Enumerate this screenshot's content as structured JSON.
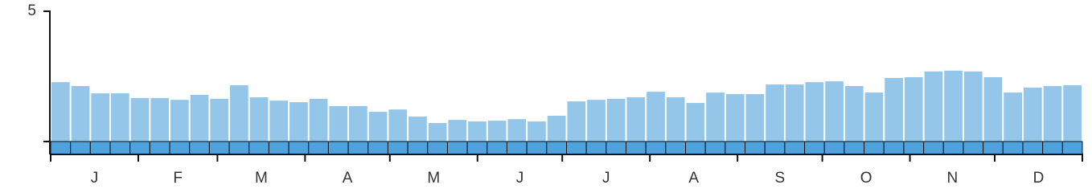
{
  "chart_data": {
    "type": "bar",
    "months": [
      "J",
      "F",
      "M",
      "A",
      "M",
      "J",
      "J",
      "A",
      "S",
      "O",
      "N",
      "D"
    ],
    "values": [
      2.28,
      2.13,
      1.85,
      1.85,
      1.67,
      1.67,
      1.6,
      1.79,
      1.64,
      2.16,
      1.7,
      1.57,
      1.51,
      1.64,
      1.36,
      1.36,
      1.14,
      1.23,
      0.96,
      0.71,
      0.83,
      0.77,
      0.8,
      0.86,
      0.77,
      0.99,
      1.54,
      1.6,
      1.64,
      1.7,
      1.91,
      1.7,
      1.48,
      1.88,
      1.82,
      1.82,
      2.19,
      2.19,
      2.28,
      2.31,
      2.13,
      1.88,
      2.44,
      2.47,
      2.69,
      2.72,
      2.69,
      2.47,
      1.88,
      2.07,
      2.13,
      2.16
    ],
    "color": "#93c6e8",
    "ylim": [
      0,
      5
    ],
    "yticks": [
      5
    ]
  }
}
